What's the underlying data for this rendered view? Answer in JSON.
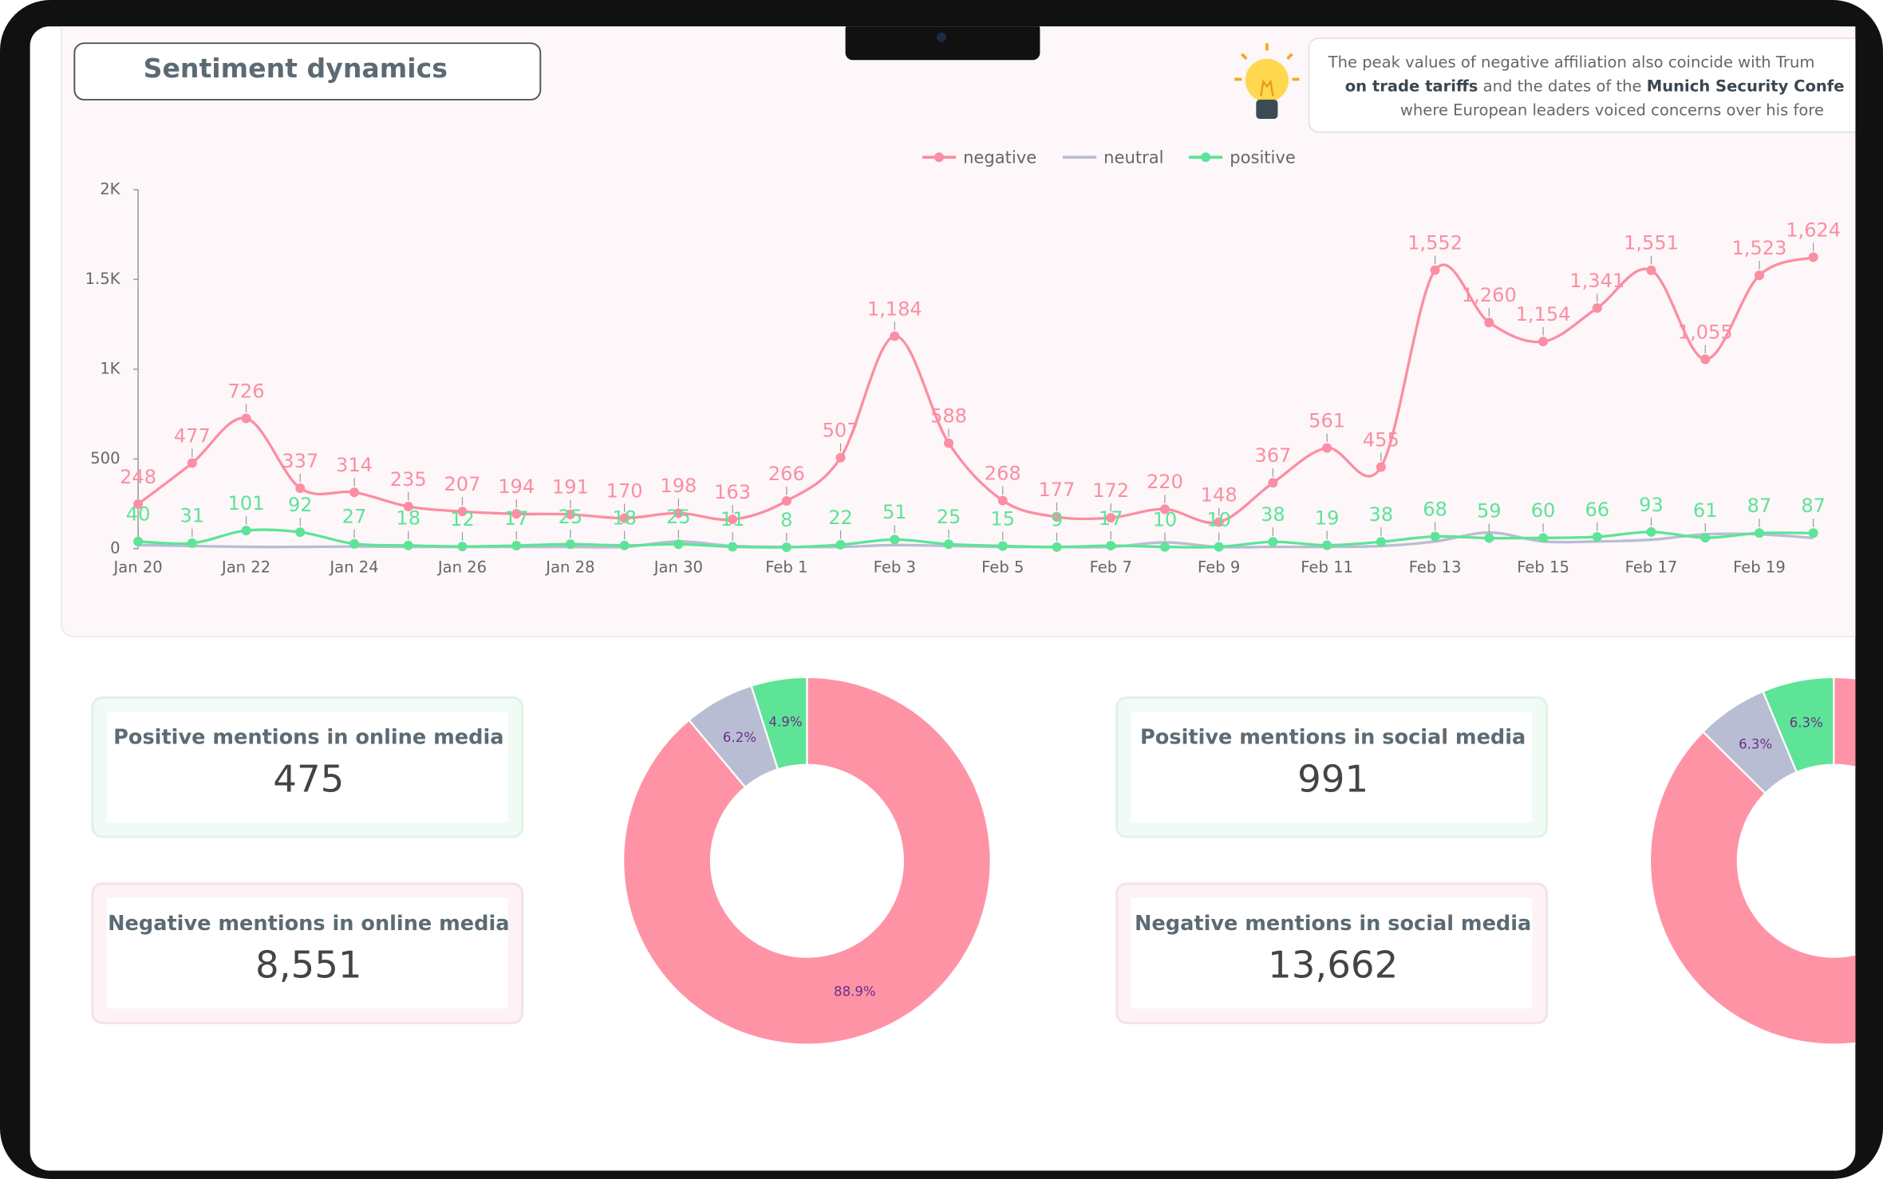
{
  "header": {
    "title": "Sentiment dynamics"
  },
  "note": {
    "lines": [
      [
        {
          "text": "The peak values of negative affiliation also coincide with Trum",
          "bold": false
        }
      ],
      [
        {
          "text": "on trade tariffs",
          "bold": true
        },
        {
          "text": " and the dates of the ",
          "bold": false
        },
        {
          "text": "Munich Security Confe",
          "bold": true
        }
      ],
      [
        {
          "text": "where European leaders voiced concerns over his fore",
          "bold": false
        }
      ]
    ]
  },
  "cards": [
    {
      "title": "Positive mentions in online media",
      "value": "475",
      "tone": "positive"
    },
    {
      "title": "Negative mentions in online media",
      "value": "8,551",
      "tone": "negative"
    },
    {
      "title": "Positive mentions in social media",
      "value": "991",
      "tone": "positive"
    },
    {
      "title": "Negative mentions in social media",
      "value": "13,662",
      "tone": "negative"
    }
  ],
  "chart_data": [
    {
      "type": "line",
      "legend": "top",
      "grid": false,
      "categories": [
        "Jan 20",
        null,
        "Jan 22",
        null,
        "Jan 24",
        null,
        "Jan 26",
        null,
        "Jan 28",
        null,
        "Jan 30",
        null,
        "Feb 1",
        null,
        "Feb 3",
        null,
        "Feb 5",
        null,
        "Feb 7",
        null,
        "Feb 9",
        null,
        "Feb 11",
        null,
        "Feb 13",
        null,
        "Feb 15",
        null,
        "Feb 17",
        null,
        "Feb 19",
        null
      ],
      "ylim": [
        0,
        2000
      ],
      "yticks": [
        0,
        500,
        {
          "value": 1000,
          "label": "1K"
        },
        {
          "value": 1500,
          "label": "1.5K"
        },
        {
          "value": 2000,
          "label": "2K"
        }
      ],
      "series": [
        {
          "name": "negative",
          "color": "#fb8ea2",
          "markers": true,
          "data_labels": true,
          "values": [
            248,
            477,
            726,
            337,
            314,
            235,
            207,
            194,
            191,
            170,
            198,
            163,
            266,
            507,
            1184,
            588,
            268,
            177,
            172,
            220,
            148,
            367,
            561,
            455,
            1552,
            1260,
            1154,
            1341,
            1551,
            1055,
            1523,
            1624
          ],
          "value_labels": [
            "248",
            "477",
            "726",
            "337",
            "314",
            "235",
            "207",
            "194",
            "191",
            "170",
            "198",
            "163",
            "266",
            "507",
            "1,184",
            "588",
            "268",
            "177",
            "172",
            "220",
            "148",
            "367",
            "561",
            "455",
            "1,552",
            "1,260",
            "1,154",
            "1,341",
            "1,551",
            "1,055",
            "1,523",
            "1,624"
          ]
        },
        {
          "name": "neutral",
          "color": "#b9bdd3",
          "markers": false,
          "data_labels": false,
          "values": [
            20,
            15,
            10,
            10,
            12,
            10,
            10,
            10,
            10,
            10,
            40,
            15,
            10,
            10,
            20,
            15,
            10,
            10,
            10,
            35,
            10,
            10,
            10,
            15,
            40,
            90,
            40,
            40,
            50,
            80,
            80,
            60
          ]
        },
        {
          "name": "positive",
          "color": "#5de497",
          "markers": true,
          "data_labels": true,
          "values": [
            40,
            31,
            101,
            92,
            27,
            18,
            12,
            17,
            25,
            18,
            25,
            11,
            8,
            22,
            51,
            25,
            15,
            9,
            17,
            10,
            10,
            38,
            19,
            38,
            68,
            59,
            60,
            66,
            93,
            61,
            87,
            87
          ]
        }
      ]
    },
    {
      "type": "pie",
      "donut": true,
      "values": [
        88.9,
        6.2,
        4.9
      ],
      "value_labels": [
        "88.9%",
        "6.2%",
        "4.9%"
      ],
      "colors": [
        "#ff93a6",
        "#b9bdd3",
        "#5de497"
      ]
    },
    {
      "type": "pie",
      "donut": true,
      "values": [
        87.4,
        6.3,
        6.3
      ],
      "value_labels": [
        null,
        "6.3%",
        "6.3%"
      ],
      "colors": [
        "#ff93a6",
        "#b9bdd3",
        "#5de497"
      ]
    }
  ]
}
